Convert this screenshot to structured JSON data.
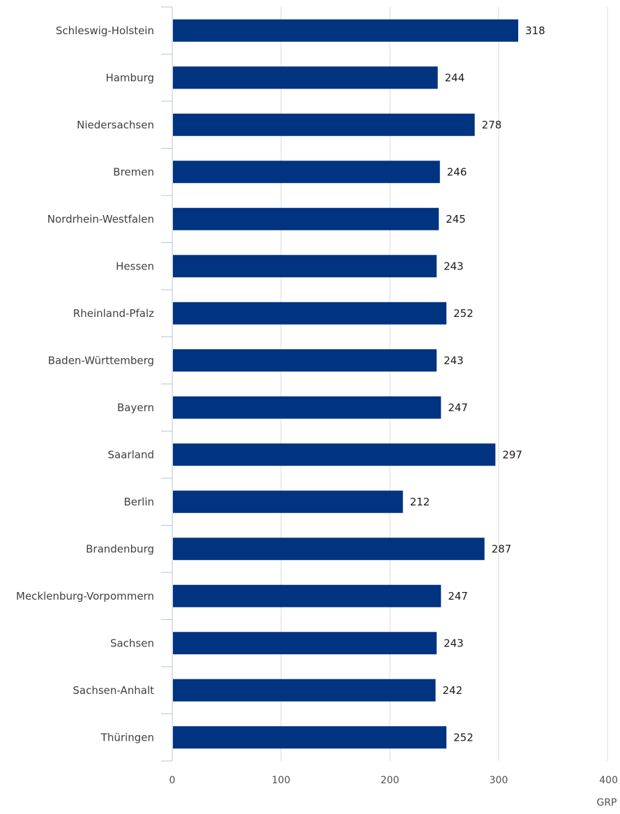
{
  "chart_data": {
    "type": "bar",
    "orientation": "horizontal",
    "categories": [
      "Schleswig-Holstein",
      "Hamburg",
      "Niedersachsen",
      "Bremen",
      "Nordrhein-Westfalen",
      "Hessen",
      "Rheinland-Pfalz",
      "Baden-Württemberg",
      "Bayern",
      "Saarland",
      "Berlin",
      "Brandenburg",
      "Mecklenburg-Vorpommern",
      "Sachsen",
      "Sachsen-Anhalt",
      "Thüringen"
    ],
    "values": [
      318,
      244,
      278,
      246,
      245,
      243,
      252,
      243,
      247,
      297,
      212,
      287,
      247,
      243,
      242,
      252
    ],
    "value_labels": [
      "318",
      "244",
      "278",
      "246",
      "245",
      "243",
      "252",
      "243",
      "247",
      "297",
      "212",
      "287",
      "247",
      "243",
      "242",
      "252"
    ],
    "title": "",
    "xlabel": "GRP",
    "ylabel": "",
    "xlim": [
      0,
      400
    ],
    "x_ticks": [
      0,
      100,
      200,
      300,
      400
    ],
    "x_tick_labels": [
      "0",
      "100",
      "200",
      "300",
      "400"
    ],
    "grid": true,
    "legend": false,
    "colors": {
      "bar": "#003380",
      "grid": "#d4dbe4",
      "axis": "#b8c6d6"
    }
  }
}
